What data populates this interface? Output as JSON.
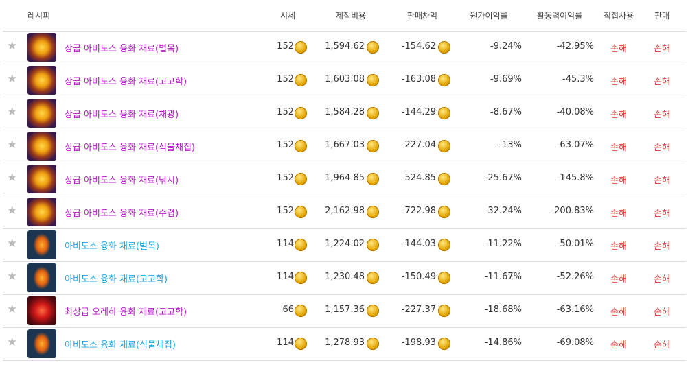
{
  "table": {
    "headers": [
      "레시피",
      "시세",
      "제작비용",
      "판매차익",
      "원가이익률",
      "활동력이익률",
      "직접사용",
      "판매"
    ],
    "rows": [
      {
        "name": "상급 아비도스 융화 재료(벌목)",
        "color": "#b516c8",
        "icon": "gold",
        "price": "152",
        "cost": "1,594.62",
        "profit": "-154.62",
        "cost_margin": "-9.24%",
        "energy_margin": "-42.95%",
        "direct": "손해",
        "sell": "손해"
      },
      {
        "name": "상급 아비도스 융화 재료(고고학)",
        "color": "#b516c8",
        "icon": "gold",
        "price": "152",
        "cost": "1,603.08",
        "profit": "-163.08",
        "cost_margin": "-9.69%",
        "energy_margin": "-45.3%",
        "direct": "손해",
        "sell": "손해"
      },
      {
        "name": "상급 아비도스 융화 재료(채광)",
        "color": "#b516c8",
        "icon": "gold",
        "price": "152",
        "cost": "1,584.28",
        "profit": "-144.29",
        "cost_margin": "-8.67%",
        "energy_margin": "-40.08%",
        "direct": "손해",
        "sell": "손해"
      },
      {
        "name": "상급 아비도스 융화 재료(식물채집)",
        "color": "#b516c8",
        "icon": "gold",
        "price": "152",
        "cost": "1,667.03",
        "profit": "-227.04",
        "cost_margin": "-13%",
        "energy_margin": "-63.07%",
        "direct": "손해",
        "sell": "손해"
      },
      {
        "name": "상급 아비도스 융화 재료(낚시)",
        "color": "#b516c8",
        "icon": "gold",
        "price": "152",
        "cost": "1,964.85",
        "profit": "-524.85",
        "cost_margin": "-25.67%",
        "energy_margin": "-145.8%",
        "direct": "손해",
        "sell": "손해"
      },
      {
        "name": "상급 아비도스 융화 재료(수렵)",
        "color": "#b516c8",
        "icon": "gold",
        "price": "152",
        "cost": "2,162.98",
        "profit": "-722.98",
        "cost_margin": "-32.24%",
        "energy_margin": "-200.83%",
        "direct": "손해",
        "sell": "손해"
      },
      {
        "name": "아비도스 융화 재료(벌목)",
        "color": "#1aa6e6",
        "icon": "blue",
        "price": "114",
        "cost": "1,224.02",
        "profit": "-144.03",
        "cost_margin": "-11.22%",
        "energy_margin": "-50.01%",
        "direct": "손해",
        "sell": "손해"
      },
      {
        "name": "아비도스 융화 재료(고고학)",
        "color": "#1aa6e6",
        "icon": "blue",
        "price": "114",
        "cost": "1,230.48",
        "profit": "-150.49",
        "cost_margin": "-11.67%",
        "energy_margin": "-52.26%",
        "direct": "손해",
        "sell": "손해"
      },
      {
        "name": "최상급 오레하 융화 재료(고고학)",
        "color": "#b516c8",
        "icon": "red",
        "price": "66",
        "cost": "1,157.36",
        "profit": "-227.37",
        "cost_margin": "-18.68%",
        "energy_margin": "-63.16%",
        "direct": "손해",
        "sell": "손해"
      },
      {
        "name": "아비도스 융화 재료(식물채집)",
        "color": "#1aa6e6",
        "icon": "blue",
        "price": "114",
        "cost": "1,278.93",
        "profit": "-198.93",
        "cost_margin": "-14.86%",
        "energy_margin": "-69.08%",
        "direct": "손해",
        "sell": "손해"
      }
    ]
  }
}
